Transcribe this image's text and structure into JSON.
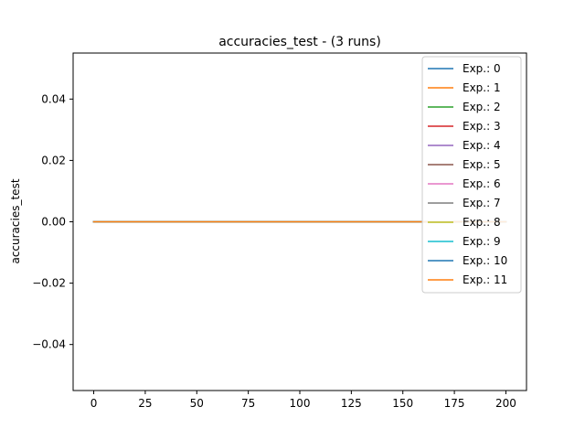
{
  "chart_data": {
    "type": "line",
    "title": "accuracies_test - (3 runs)",
    "xlabel": "",
    "ylabel": "accuracies_test",
    "xlim": [
      -10,
      210
    ],
    "ylim": [
      -0.055,
      0.055
    ],
    "x_ticks": [
      0,
      25,
      50,
      75,
      100,
      125,
      150,
      175,
      200
    ],
    "y_ticks": [
      -0.04,
      -0.02,
      0.0,
      0.02,
      0.04
    ],
    "y_tick_labels": [
      "−0.04",
      "−0.02",
      "0.00",
      "0.02",
      "0.04"
    ],
    "grid": false,
    "legend_position": "top-right",
    "series": [
      {
        "name": "Exp.: 0",
        "color": "#1f77b4",
        "x": [
          0,
          200
        ],
        "values": [
          0,
          0
        ]
      },
      {
        "name": "Exp.: 1",
        "color": "#ff7f0e",
        "x": [
          0,
          200
        ],
        "values": [
          0,
          0
        ]
      },
      {
        "name": "Exp.: 2",
        "color": "#2ca02c",
        "x": [
          0,
          200
        ],
        "values": [
          0,
          0
        ]
      },
      {
        "name": "Exp.: 3",
        "color": "#d62728",
        "x": [
          0,
          200
        ],
        "values": [
          0,
          0
        ]
      },
      {
        "name": "Exp.: 4",
        "color": "#9467bd",
        "x": [
          0,
          200
        ],
        "values": [
          0,
          0
        ]
      },
      {
        "name": "Exp.: 5",
        "color": "#8c564b",
        "x": [
          0,
          200
        ],
        "values": [
          0,
          0
        ]
      },
      {
        "name": "Exp.: 6",
        "color": "#e377c2",
        "x": [
          0,
          200
        ],
        "values": [
          0,
          0
        ]
      },
      {
        "name": "Exp.: 7",
        "color": "#7f7f7f",
        "x": [
          0,
          200
        ],
        "values": [
          0,
          0
        ]
      },
      {
        "name": "Exp.: 8",
        "color": "#bcbd22",
        "x": [
          0,
          200
        ],
        "values": [
          0,
          0
        ]
      },
      {
        "name": "Exp.: 9",
        "color": "#17becf",
        "x": [
          0,
          200
        ],
        "values": [
          0,
          0
        ]
      },
      {
        "name": "Exp.: 10",
        "color": "#1f77b4",
        "x": [
          0,
          200
        ],
        "values": [
          0,
          0
        ]
      },
      {
        "name": "Exp.: 11",
        "color": "#ff7f0e",
        "x": [
          0,
          200
        ],
        "values": [
          0,
          0
        ]
      }
    ]
  }
}
